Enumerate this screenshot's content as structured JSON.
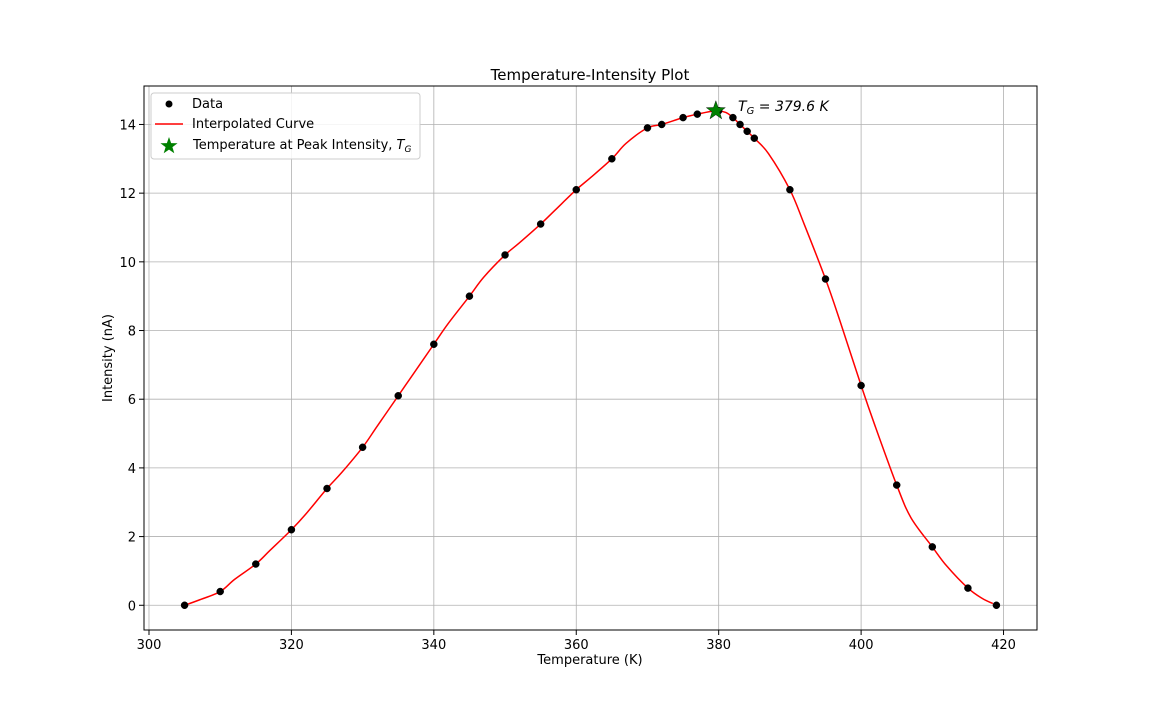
{
  "chart_data": {
    "type": "line",
    "title": "Temperature-Intensity Plot",
    "xlabel": "Temperature (K)",
    "ylabel": "Intensity (nA)",
    "xlim": [
      299.3,
      424.7
    ],
    "ylim": [
      -0.72,
      15.12
    ],
    "xticks": [
      300,
      320,
      340,
      360,
      380,
      400,
      420
    ],
    "yticks": [
      0,
      2,
      4,
      6,
      8,
      10,
      12,
      14
    ],
    "grid": true,
    "legend_position": "top-left",
    "series": [
      {
        "name": "Data",
        "kind": "scatter",
        "color": "#000000",
        "x": [
          305,
          310,
          315,
          320,
          325,
          330,
          335,
          340,
          345,
          350,
          355,
          360,
          365,
          370,
          372,
          375,
          377,
          380,
          382,
          383,
          384,
          385,
          390,
          395,
          400,
          405,
          410,
          415,
          419
        ],
        "y": [
          0.0,
          0.4,
          1.2,
          2.2,
          3.4,
          4.6,
          6.1,
          7.6,
          9.0,
          10.2,
          11.1,
          12.1,
          13.0,
          13.9,
          14.0,
          14.2,
          14.3,
          14.4,
          14.2,
          14.0,
          13.8,
          13.6,
          12.1,
          9.5,
          6.4,
          3.5,
          1.7,
          0.5,
          0.0
        ]
      },
      {
        "name": "Interpolated Curve",
        "kind": "line",
        "color": "#ff0000",
        "x": [
          305,
          307,
          310,
          312,
          315,
          317,
          320,
          322,
          325,
          327,
          330,
          332,
          335,
          337,
          340,
          342,
          345,
          347,
          350,
          352,
          355,
          357,
          360,
          362,
          365,
          367,
          370,
          372,
          375,
          377,
          379.6,
          381,
          382,
          383,
          384,
          385,
          387,
          390,
          392,
          395,
          397,
          400,
          402,
          405,
          407,
          410,
          412,
          415,
          417,
          418.5
        ],
        "y": [
          0.0,
          0.15,
          0.4,
          0.75,
          1.2,
          1.6,
          2.2,
          2.65,
          3.4,
          3.85,
          4.6,
          5.2,
          6.1,
          6.7,
          7.6,
          8.2,
          9.0,
          9.55,
          10.2,
          10.55,
          11.1,
          11.5,
          12.1,
          12.45,
          13.0,
          13.45,
          13.9,
          14.0,
          14.2,
          14.3,
          14.4,
          14.35,
          14.2,
          14.0,
          13.8,
          13.6,
          13.15,
          12.1,
          11.1,
          9.5,
          8.3,
          6.4,
          5.2,
          3.5,
          2.55,
          1.7,
          1.15,
          0.5,
          0.2,
          0.05
        ]
      },
      {
        "name": "Temperature at Peak Intensity, T_G",
        "kind": "marker",
        "marker": "star",
        "color": "#008000",
        "x": [
          379.6
        ],
        "y": [
          14.4
        ]
      }
    ],
    "legend": {
      "data": "Data",
      "curve": "Interpolated Curve",
      "peak_prefix": "Temperature at Peak Intensity, ",
      "peak_symbol": "T",
      "peak_subscript": "G"
    },
    "annotation": {
      "symbol": "T",
      "subscript": "G",
      "text": " = 379.6 K",
      "x": 379.6,
      "y": 14.4
    }
  }
}
